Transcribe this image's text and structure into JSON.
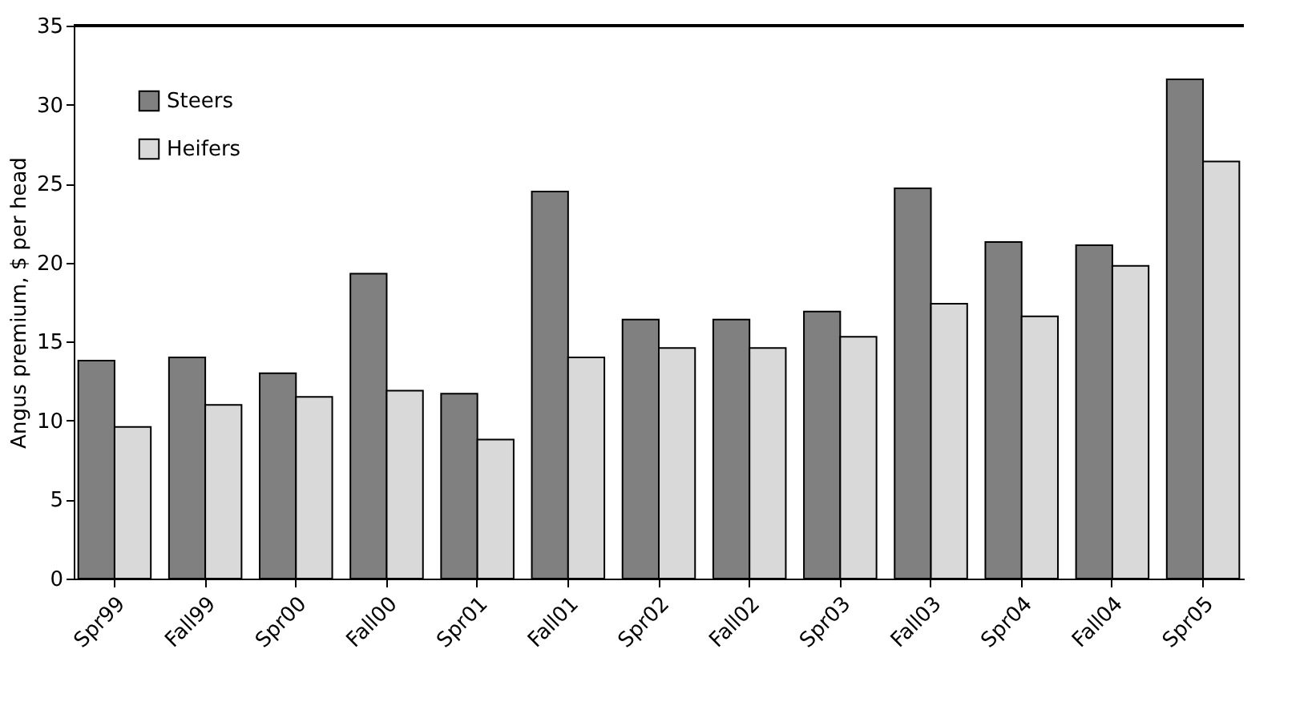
{
  "chart_data": {
    "type": "bar",
    "ylabel": "Angus premium, $ per head",
    "categories": [
      "Spr99",
      "Fall99",
      "Spr00",
      "Fall00",
      "Spr01",
      "Fall01",
      "Spr02",
      "Fall02",
      "Spr03",
      "Fall03",
      "Spr04",
      "Fall04",
      "Spr05"
    ],
    "series": [
      {
        "name": "Steers",
        "color": "#808080",
        "values": [
          13.8,
          14.0,
          13.0,
          19.3,
          11.7,
          24.5,
          16.4,
          16.4,
          16.9,
          24.7,
          21.3,
          21.1,
          31.6
        ]
      },
      {
        "name": "Heifers",
        "color": "#d9d9d9",
        "values": [
          9.6,
          11.0,
          11.5,
          11.9,
          8.8,
          14.0,
          14.6,
          14.6,
          15.3,
          17.4,
          16.6,
          19.8,
          26.4
        ]
      }
    ],
    "ylim": [
      0,
      35
    ],
    "yticks": [
      0,
      5,
      10,
      15,
      20,
      25,
      30,
      35
    ],
    "grid": false,
    "legend": "top left"
  }
}
